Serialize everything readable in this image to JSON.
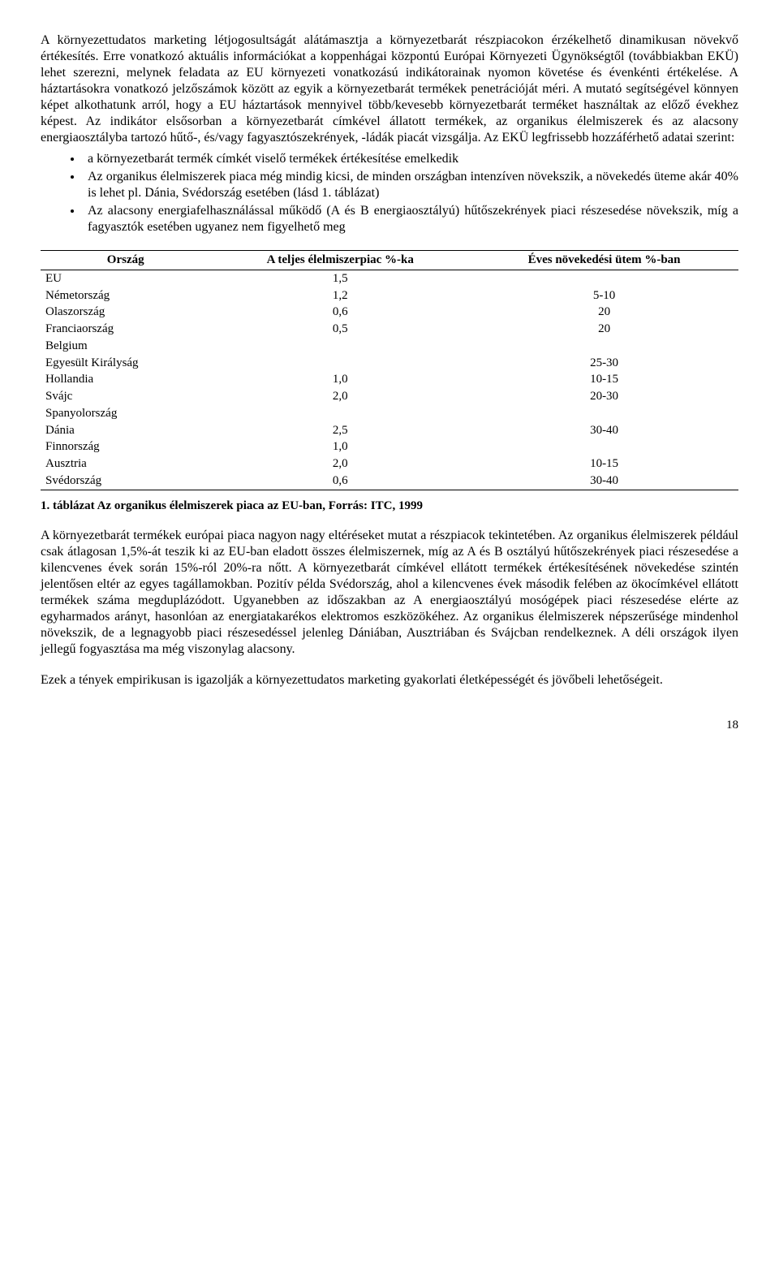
{
  "para1": "A környezettudatos marketing létjogosultságát alátámasztja a környezetbarát részpiacokon érzékelhető dinamikusan növekvő értékesítés. Erre vonatkozó aktuális információkat a koppenhágai központú Európai Környezeti Ügynökségtől (továbbiakban EKÜ) lehet szerezni, melynek feladata az EU környezeti vonatkozású indikátorainak nyomon követése és évenkénti értékelése. A háztartásokra vonatkozó jelzőszámok között az egyik a környezetbarát termékek penetrációját méri. A mutató segítségével könnyen képet alkothatunk arról, hogy a EU háztartások mennyivel több/kevesebb környezetbarát terméket használtak az előző évekhez képest. Az indikátor elsősorban a környezetbarát címkével állatott termékek, az organikus élelmiszerek és az alacsony energiaosztályba tartozó hűtő-, és/vagy fagyasztószekrények, -ládák piacát vizsgálja. Az EKÜ legfrissebb hozzáférhető adatai szerint:",
  "bullets": [
    "a környezetbarát termék címkét viselő termékek értékesítése emelkedik",
    "Az organikus élelmiszerek piaca még mindig kicsi, de minden országban intenzíven növekszik, a növekedés üteme akár 40% is lehet pl. Dánia, Svédország esetében (lásd 1. táblázat)",
    "Az alacsony energiafelhasználással működő (A és B energiaosztályú) hűtőszekrények piaci részesedése növekszik, míg a fagyasztók esetében ugyanez nem figyelhető meg"
  ],
  "table": {
    "columns": [
      "Ország",
      "A teljes élelmiszerpiac %-ka",
      "Éves növekedési ütem %-ban"
    ],
    "rows": [
      {
        "country": "EU",
        "share": "1,5",
        "growth": ""
      },
      {
        "country": "Németország",
        "share": "1,2",
        "growth": "5-10"
      },
      {
        "country": "Olaszország",
        "share": "0,6",
        "growth": "20"
      },
      {
        "country": "Franciaország",
        "share": "0,5",
        "growth": "20"
      },
      {
        "country": "Belgium",
        "share": "",
        "growth": ""
      },
      {
        "country": "Egyesült Királyság",
        "share": "",
        "growth": "25-30"
      },
      {
        "country": "Hollandia",
        "share": "1,0",
        "growth": "10-15"
      },
      {
        "country": "Svájc",
        "share": "2,0",
        "growth": "20-30"
      },
      {
        "country": "Spanyolország",
        "share": "",
        "growth": ""
      },
      {
        "country": "Dánia",
        "share": "2,5",
        "growth": "30-40"
      },
      {
        "country": "Finnország",
        "share": "1,0",
        "growth": ""
      },
      {
        "country": "Ausztria",
        "share": "2,0",
        "growth": "10-15"
      },
      {
        "country": "Svédország",
        "share": "0,6",
        "growth": "30-40"
      }
    ],
    "col_align": [
      "left",
      "center",
      "center"
    ],
    "border_color": "#000000",
    "font_size": 15
  },
  "caption": "1. táblázat Az organikus élelmiszerek piaca az EU-ban, Forrás: ITC, 1999",
  "para2": "A környezetbarát termékek európai piaca nagyon nagy eltéréseket mutat a részpiacok tekintetében. Az organikus élelmiszerek például csak átlagosan 1,5%-át teszik ki az EU-ban eladott összes élelmiszernek, míg az A és B osztályú hűtőszekrények piaci részesedése a kilencvenes évek során 15%-ról 20%-ra nőtt. A környezetbarát címkével ellátott termékek értékesítésének növekedése szintén jelentősen eltér az egyes tagállamokban. Pozitív példa Svédország, ahol a kilencvenes évek második felében az ökocímkével ellátott termékek száma megduplázódott. Ugyanebben az időszakban az A energiaosztályú mosógépek piaci részesedése elérte az egyharmados arányt, hasonlóan az energiatakarékos elektromos eszközökéhez. Az organikus élelmiszerek népszerűsége mindenhol növekszik, de a legnagyobb piaci részesedéssel jelenleg Dániában, Ausztriában és Svájcban rendelkeznek. A déli országok ilyen jellegű fogyasztása ma még viszonylag alacsony.",
  "para3": "Ezek a tények empirikusan is igazolják a környezettudatos marketing gyakorlati életképességét és jövőbeli lehetőségeit.",
  "page_number": "18"
}
